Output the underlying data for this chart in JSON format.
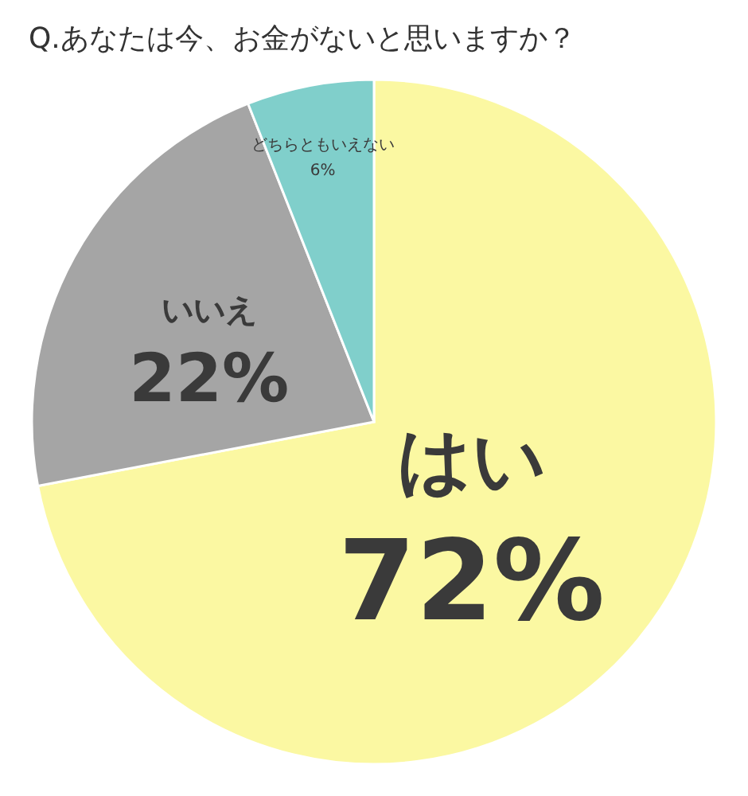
{
  "chart_data": {
    "type": "pie",
    "title": "Q.あなたは今、お金がないと思いますか？",
    "categories": [
      "はい",
      "いいえ",
      "どちらともいえない"
    ],
    "values": [
      72,
      22,
      6
    ],
    "value_labels": [
      "72%",
      "22%",
      "6%"
    ],
    "colors": [
      "#fbf8a2",
      "#a5a5a5",
      "#80cfcb"
    ]
  }
}
